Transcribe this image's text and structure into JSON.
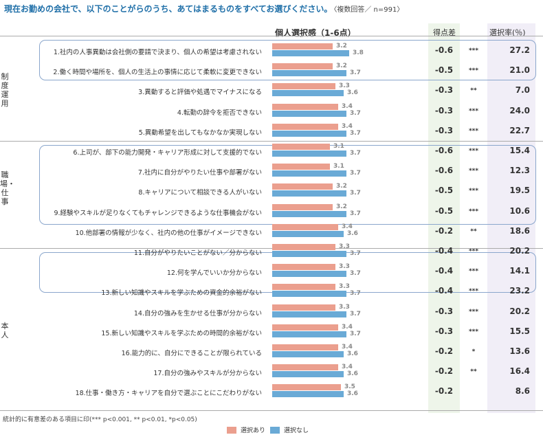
{
  "title": "現在お勤めの会社で、以下のことがらのうち、あてはまるものをすべてお選びください。",
  "title_note": "〈複数回答／ n=991〉",
  "headers": {
    "main": "個人選択感（1-6点）",
    "diff": "得点差",
    "rate": "選択率(％)"
  },
  "footnote": "統計的に有意差のある項目に印(*** p<0.001, ** p<0.01, *p<0.05)",
  "legend": {
    "yes": "選択あり",
    "no": "選択なし"
  },
  "colors": {
    "yes": "#eb9f8e",
    "no": "#6aaad6",
    "title": "#1f6fa8",
    "box": "#8aa6cc"
  },
  "groups": [
    {
      "label": "制度運用"
    },
    {
      "label": "職場・仕事"
    },
    {
      "label": "本人"
    }
  ],
  "chart_data": {
    "type": "bar",
    "orientation": "horizontal",
    "categories": [
      "1.社内の人事異動は会社側の要請で決まり、個人の希望は考慮されない",
      "2.働く時間や場所を、個人の生活上の事情に応じて柔軟に変更できない",
      "3.異動すると評価や処遇でマイナスになる",
      "4.転勤の辞令を拒否できない",
      "5.異動希望を出してもなかなか実現しない",
      "6.上司が、部下の能力開発・キャリア形成に対して支援的でない",
      "7.社内に自分がやりたい仕事や部署がない",
      "8.キャリアについて相談できる人がいない",
      "9.経験やスキルが足りなくてもチャレンジできるような仕事機会がない",
      "10.他部署の情報が少なく、社内の他の仕事がイメージできない",
      "11.自分がやりたいことがない／分からない",
      "12.何を学んでいいか分からない",
      "13.新しい知識やスキルを学ぶための資金的余裕がない",
      "14.自分の強みを生かせる仕事が分からない",
      "15.新しい知識やスキルを学ぶための時間的余裕がない",
      "16.能力的に、自分にできることが限られている",
      "17.自分の強みやスキルが分からない",
      "18.仕事・働き方・キャリアを自分で選ぶことにこだわりがない"
    ],
    "series": [
      {
        "name": "選択あり",
        "values": [
          3.2,
          3.2,
          3.3,
          3.4,
          3.4,
          3.1,
          3.1,
          3.2,
          3.2,
          3.4,
          3.3,
          3.3,
          3.3,
          3.3,
          3.4,
          3.4,
          3.4,
          3.5
        ]
      },
      {
        "name": "選択なし",
        "values": [
          3.8,
          3.7,
          3.6,
          3.7,
          3.7,
          3.7,
          3.7,
          3.7,
          3.7,
          3.6,
          3.7,
          3.7,
          3.7,
          3.7,
          3.7,
          3.6,
          3.6,
          3.6
        ]
      }
    ],
    "diff": [
      "-0.6",
      "-0.5",
      "-0.3",
      "-0.3",
      "-0.3",
      "-0.6",
      "-0.6",
      "-0.5",
      "-0.5",
      "-0.2",
      "-0.4",
      "-0.4",
      "-0.4",
      "-0.3",
      "-0.3",
      "-0.2",
      "-0.2",
      "-0.2"
    ],
    "significance": [
      "***",
      "***",
      "**",
      "***",
      "***",
      "***",
      "***",
      "***",
      "***",
      "**",
      "***",
      "***",
      "***",
      "***",
      "***",
      "*",
      "**",
      ""
    ],
    "rate": [
      "27.2",
      "21.0",
      "7.0",
      "24.0",
      "22.7",
      "15.4",
      "12.3",
      "19.5",
      "10.6",
      "18.6",
      "20.2",
      "14.1",
      "23.2",
      "20.2",
      "15.5",
      "13.6",
      "16.4",
      "8.6"
    ],
    "row_group": [
      0,
      0,
      0,
      0,
      0,
      1,
      1,
      1,
      1,
      1,
      2,
      2,
      2,
      2,
      2,
      2,
      2,
      2
    ],
    "xlim": [
      1,
      6
    ]
  }
}
